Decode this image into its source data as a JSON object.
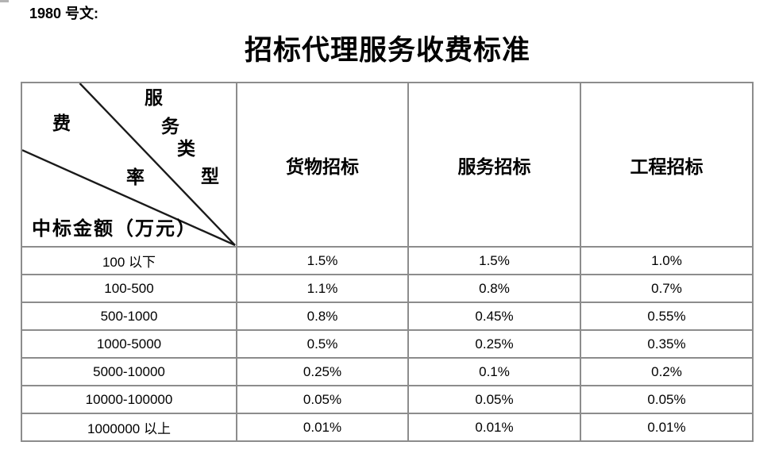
{
  "page": {
    "doc_number": "1980 号文:",
    "title": "招标代理服务收费标准"
  },
  "colors": {
    "background": "#ffffff",
    "grid_border": "#8c8c8c",
    "diagonal_line": "#1a1a1a",
    "text": "#000000"
  },
  "table": {
    "diagonal": {
      "service_type_chars": [
        "服",
        "务",
        "类",
        "型"
      ],
      "rate_chars": [
        "费",
        "率"
      ],
      "amount_label": "中标金额（万元）"
    },
    "columns": [
      "货物招标",
      "服务招标",
      "工程招标"
    ],
    "rows": [
      {
        "amount": "100 以下",
        "values": [
          "1.5%",
          "1.5%",
          "1.0%"
        ]
      },
      {
        "amount": "100-500",
        "values": [
          "1.1%",
          "0.8%",
          "0.7%"
        ]
      },
      {
        "amount": "500-1000",
        "values": [
          "0.8%",
          "0.45%",
          "0.55%"
        ]
      },
      {
        "amount": "1000-5000",
        "values": [
          "0.5%",
          "0.25%",
          "0.35%"
        ]
      },
      {
        "amount": "5000-10000",
        "values": [
          "0.25%",
          "0.1%",
          "0.2%"
        ]
      },
      {
        "amount": "10000-100000",
        "values": [
          "0.05%",
          "0.05%",
          "0.05%"
        ]
      },
      {
        "amount": "1000000 以上",
        "values": [
          "0.01%",
          "0.01%",
          "0.01%"
        ]
      }
    ]
  }
}
